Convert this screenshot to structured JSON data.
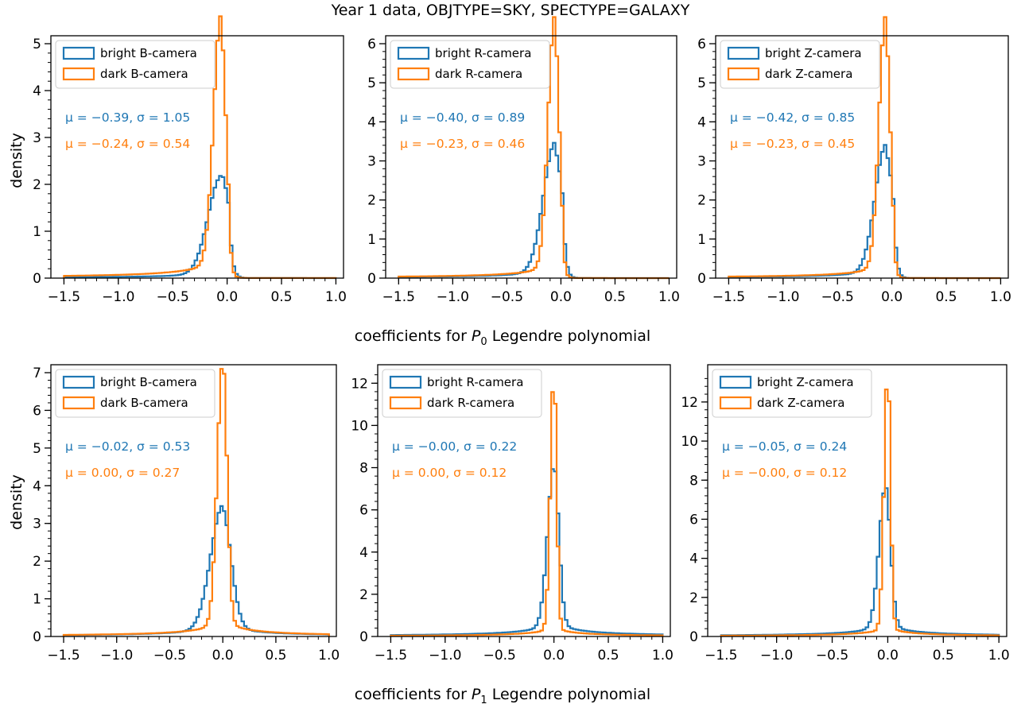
{
  "suptitle": "Year 1 data, OBJTYPE=SKY, SPECTYPE=GALAXY",
  "row_labels": [
    {
      "prefix": "coefficients for ",
      "var": "P",
      "sub": "0",
      "suffix": " Legendre polynomial"
    },
    {
      "prefix": "coefficients for ",
      "var": "P",
      "sub": "1",
      "suffix": " Legendre polynomial"
    }
  ],
  "ylabel": "density",
  "colors": {
    "bright": "#1f77b4",
    "dark": "#ff7f0e"
  },
  "chart_data": [
    {
      "type": "histogram",
      "xlim": [
        -1.5,
        1.0
      ],
      "ylim": [
        0,
        5
      ],
      "xticks": [
        -1.5,
        -1.0,
        -0.5,
        0.0,
        0.5,
        1.0
      ],
      "yticks": [
        0,
        1,
        2,
        3,
        4,
        5
      ],
      "grid": false,
      "legend_loc": "upper left",
      "series": [
        {
          "name": "bright B-camera",
          "mu": -0.39,
          "sigma": 1.05,
          "core": 0.09,
          "peak": 1.95,
          "tail_left": 0.03,
          "tail_right": 0.04
        },
        {
          "name": "dark B-camera",
          "mu": -0.24,
          "sigma": 0.54,
          "core": 0.05,
          "peak": 5.0,
          "tail_left": 0.03,
          "tail_right": 0.02
        }
      ],
      "stats_text": [
        "μ = −0.39,  σ = 1.05",
        "μ = −0.24,  σ = 0.54"
      ]
    },
    {
      "type": "histogram",
      "xlim": [
        -1.5,
        1.0
      ],
      "ylim": [
        0,
        6
      ],
      "xticks": [
        -1.5,
        -1.0,
        -0.5,
        0.0,
        0.5,
        1.0
      ],
      "yticks": [
        0,
        1,
        2,
        3,
        4,
        5,
        6
      ],
      "grid": false,
      "legend_loc": "upper left",
      "series": [
        {
          "name": "bright R-camera",
          "mu": -0.4,
          "sigma": 0.89,
          "core": 0.08,
          "peak": 3.1,
          "tail_left": 0.03,
          "tail_right": 0.015
        },
        {
          "name": "dark R-camera",
          "mu": -0.23,
          "sigma": 0.46,
          "core": 0.045,
          "peak": 6.2,
          "tail_left": 0.02,
          "tail_right": 0.01
        }
      ],
      "stats_text": [
        "μ = −0.40,  σ = 0.89",
        "μ = −0.23,  σ = 0.46"
      ]
    },
    {
      "type": "histogram",
      "xlim": [
        -1.5,
        1.0
      ],
      "ylim": [
        0,
        6
      ],
      "xticks": [
        -1.5,
        -1.0,
        -0.5,
        0.0,
        0.5,
        1.0
      ],
      "yticks": [
        0,
        1,
        2,
        3,
        4,
        5,
        6
      ],
      "grid": false,
      "legend_loc": "upper left",
      "series": [
        {
          "name": "bright Z-camera",
          "mu": -0.42,
          "sigma": 0.85,
          "core": 0.075,
          "peak": 3.05,
          "tail_left": 0.03,
          "tail_right": 0.015
        },
        {
          "name": "dark Z-camera",
          "mu": -0.23,
          "sigma": 0.45,
          "core": 0.045,
          "peak": 6.2,
          "tail_left": 0.02,
          "tail_right": 0.01
        }
      ],
      "stats_text": [
        "μ = −0.42,  σ = 0.85",
        "μ = −0.23,  σ = 0.45"
      ]
    },
    {
      "type": "histogram",
      "xlim": [
        -1.5,
        1.0
      ],
      "ylim": [
        0,
        7
      ],
      "xticks": [
        -1.5,
        -1.0,
        -0.5,
        0.0,
        0.5,
        1.0
      ],
      "yticks": [
        0,
        1,
        2,
        3,
        4,
        5,
        6,
        7
      ],
      "grid": false,
      "legend_loc": "upper left",
      "series": [
        {
          "name": "bright B-camera",
          "mu": -0.02,
          "sigma": 0.53,
          "core": 0.085,
          "peak": 3.0,
          "tail_left": 0.04,
          "tail_right": 0.04
        },
        {
          "name": "dark B-camera",
          "mu": 0.0,
          "sigma": 0.27,
          "core": 0.04,
          "peak": 6.8,
          "tail_left": 0.02,
          "tail_right": 0.02
        }
      ],
      "stats_text": [
        "μ = −0.02,  σ = 0.53",
        "μ = 0.00,  σ = 0.27"
      ]
    },
    {
      "type": "histogram",
      "xlim": [
        -1.5,
        1.0
      ],
      "ylim": [
        0,
        12.5
      ],
      "xticks": [
        -1.5,
        -1.0,
        -0.5,
        0.0,
        0.5,
        1.0
      ],
      "yticks": [
        0,
        2,
        4,
        6,
        8,
        10,
        12
      ],
      "grid": false,
      "legend_loc": "upper left",
      "series": [
        {
          "name": "bright R-camera",
          "mu": -0.0,
          "sigma": 0.22,
          "core": 0.045,
          "peak": 7.3,
          "tail_left": 0.03,
          "tail_right": 0.03
        },
        {
          "name": "dark R-camera",
          "mu": 0.0,
          "sigma": 0.12,
          "core": 0.025,
          "peak": 12.0,
          "tail_left": 0.01,
          "tail_right": 0.01
        }
      ],
      "stats_text": [
        "μ = −0.00,  σ = 0.22",
        "μ = 0.00,  σ = 0.12"
      ]
    },
    {
      "type": "histogram",
      "xlim": [
        -1.5,
        1.0
      ],
      "ylim": [
        0,
        13.5
      ],
      "xticks": [
        -1.5,
        -1.0,
        -0.5,
        0.0,
        0.5,
        1.0
      ],
      "yticks": [
        0,
        2,
        4,
        6,
        8,
        10,
        12
      ],
      "grid": false,
      "legend_loc": "upper left",
      "series": [
        {
          "name": "bright Z-camera",
          "mu": -0.05,
          "sigma": 0.24,
          "core": 0.045,
          "peak": 6.9,
          "tail_left": 0.03,
          "tail_right": 0.03
        },
        {
          "name": "dark Z-camera",
          "mu": -0.0,
          "sigma": 0.12,
          "core": 0.025,
          "peak": 13.1,
          "tail_left": 0.01,
          "tail_right": 0.01
        }
      ],
      "stats_text": [
        "μ = −0.05,  σ = 0.24",
        "μ = −0.00,  σ = 0.12"
      ]
    }
  ]
}
